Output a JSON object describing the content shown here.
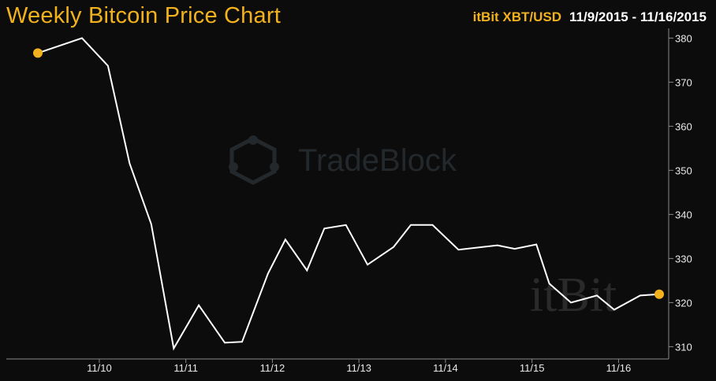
{
  "header": {
    "title": "Weekly Bitcoin Price Chart",
    "source": "itBit XBT/USD",
    "date_range": "11/9/2015 - 11/16/2015"
  },
  "watermarks": {
    "tradeblock": "TradeBlock",
    "itbit": "itBit"
  },
  "colors": {
    "background": "#0c0c0c",
    "accent": "#f2b21d",
    "line": "#ffffff",
    "axis": "#8a8a8a"
  },
  "chart_data": {
    "type": "line",
    "title": "Weekly Bitcoin Price Chart",
    "xlabel": "",
    "ylabel": "",
    "x_ticks": [
      "11/10",
      "11/11",
      "11/12",
      "11/13",
      "11/14",
      "11/15",
      "11/16"
    ],
    "x_range": [
      9.29,
      16.47
    ],
    "y_ticks": [
      310,
      320,
      330,
      340,
      350,
      360,
      370,
      380
    ],
    "ylim": [
      309,
      380.6
    ],
    "y_axis_side": "right",
    "grid": false,
    "legend": "none",
    "series": [
      {
        "values_x": [
          9.29,
          9.8,
          10.1,
          10.35,
          10.6,
          10.86,
          11.15,
          11.45,
          11.65,
          11.95,
          12.15,
          12.4,
          12.6,
          12.85,
          13.1,
          13.4,
          13.6,
          13.85,
          14.15,
          14.6,
          14.8,
          15.05,
          15.2,
          15.45,
          15.75,
          15.95,
          16.25,
          16.47
        ],
        "values_y": [
          376.6,
          380.0,
          373.7,
          351.6,
          337.8,
          309.6,
          319.4,
          310.9,
          311.1,
          326.6,
          334.3,
          327.3,
          336.8,
          337.6,
          328.6,
          332.6,
          337.6,
          337.6,
          332.0,
          333.0,
          332.2,
          333.2,
          324.3,
          320.0,
          321.6,
          318.4,
          321.6,
          321.9
        ]
      }
    ],
    "endpoints": {
      "start": {
        "x": 9.29,
        "y": 376.6
      },
      "end": {
        "x": 16.47,
        "y": 321.9
      }
    }
  }
}
